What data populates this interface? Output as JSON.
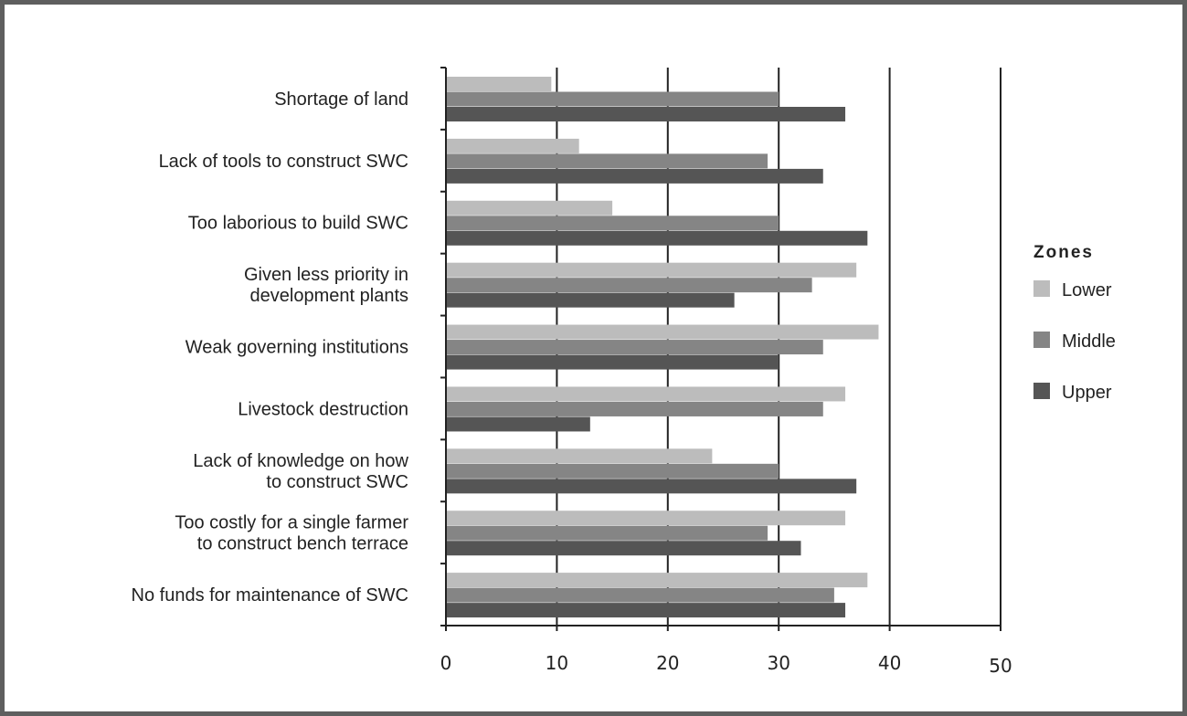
{
  "chart_data": {
    "type": "bar",
    "orientation": "horizontal",
    "categories": [
      [
        "Shortage of land"
      ],
      [
        "Lack of tools to construct SWC"
      ],
      [
        "Too laborious to build SWC"
      ],
      [
        "Given less priority in",
        "development plants"
      ],
      [
        "Weak governing institutions"
      ],
      [
        "Livestock destruction"
      ],
      [
        "Lack of knowledge on how",
        "to construct SWC"
      ],
      [
        "Too costly for a single farmer",
        "to construct bench terrace"
      ],
      [
        "No funds for maintenance of SWC"
      ]
    ],
    "series": [
      {
        "name": "Lower",
        "color": "#bcbcbc",
        "values": [
          9.5,
          12,
          15,
          37,
          39,
          36,
          24,
          36,
          38
        ]
      },
      {
        "name": "Middle",
        "color": "#858585",
        "values": [
          30,
          29,
          30,
          33,
          34,
          34,
          30,
          29,
          35
        ]
      },
      {
        "name": "Upper",
        "color": "#555555",
        "values": [
          36,
          34,
          38,
          26,
          30,
          13,
          37,
          32,
          36
        ]
      }
    ],
    "xlim": [
      0,
      50
    ],
    "xticks": [
      "0",
      "10",
      "20",
      "30",
      "40",
      "50"
    ],
    "grid": true,
    "legend": {
      "title": "Zones",
      "position": "right"
    }
  }
}
